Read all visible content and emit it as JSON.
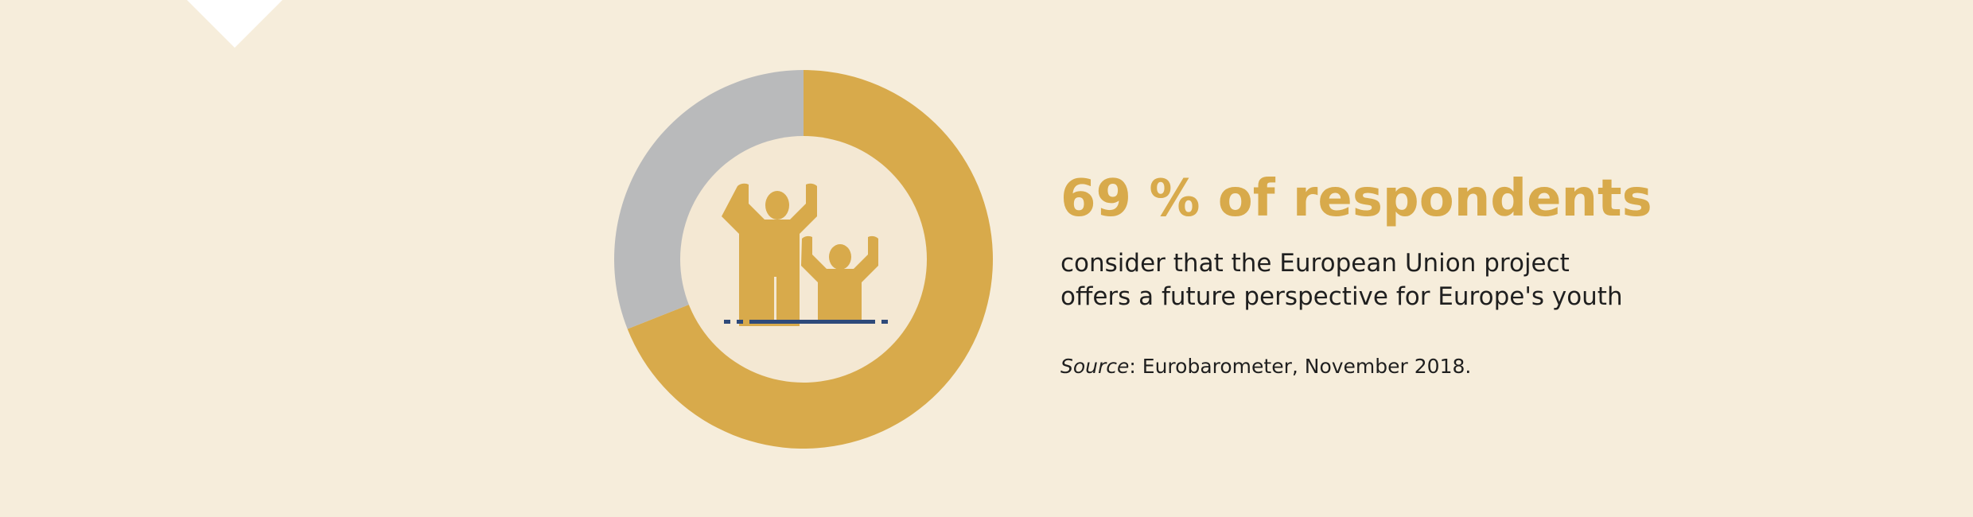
{
  "colors": {
    "background": "#f6eddb",
    "accent": "#d8aa4b",
    "remainder": "#b9babb",
    "inner_circle": "#f4e8d3",
    "baseline": "#2e4a7a",
    "notch": "#ffffff"
  },
  "icon": "two-people-raising-arms-icon",
  "chart_data": {
    "type": "pie",
    "style": "donut",
    "slices": [
      {
        "value": 69,
        "color": "#d8aa4b"
      },
      {
        "value": 31,
        "color": "#b9babb"
      }
    ],
    "unit": "%"
  },
  "headline": {
    "value": "69",
    "suffix": " % of respondents"
  },
  "description": {
    "line1": "consider that the European Union project",
    "line2": "offers a future perspective for Europe's youth"
  },
  "source": {
    "label": "Source",
    "text": ": Eurobarometer, November 2018."
  }
}
